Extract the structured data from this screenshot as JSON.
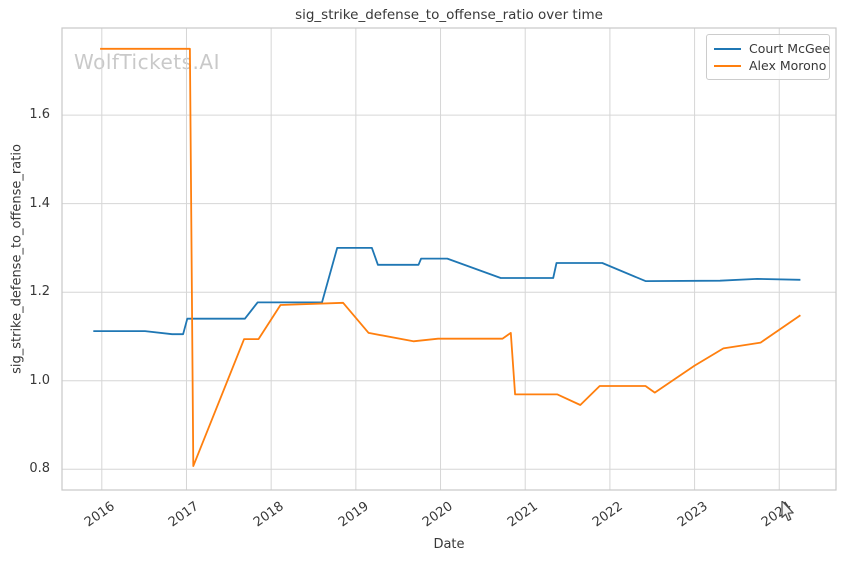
{
  "title": "sig_strike_defense_to_offense_ratio over time",
  "watermark": "WolfTickets.AI",
  "axes": {
    "xlabel": "Date",
    "ylabel": "sig_strike_defense_to_offense_ratio"
  },
  "legend": {
    "entries": [
      {
        "label": "Court McGee",
        "color": "#1f77b4"
      },
      {
        "label": "Alex Morono",
        "color": "#ff7f0e"
      }
    ]
  },
  "colors": {
    "grid": "#d6d6d6",
    "border": "#c8c8c8",
    "text": "#383838",
    "watermark": "#c9c9c9",
    "background": "#ffffff",
    "blue": "#1f77b4",
    "orange": "#ff7f0e"
  },
  "chart_data": {
    "type": "line",
    "title": "sig_strike_defense_to_offense_ratio over time",
    "xlabel": "Date",
    "ylabel": "sig_strike_defense_to_offense_ratio",
    "grid": true,
    "legend_position": "upper right",
    "x_ticks": [
      2016,
      2017,
      2018,
      2019,
      2020,
      2021,
      2022,
      2023,
      2024
    ],
    "y_ticks": [
      0.8,
      1.0,
      1.2,
      1.4,
      1.6
    ],
    "xlim": [
      2015.53,
      2024.67
    ],
    "ylim": [
      0.753,
      1.797
    ],
    "series": [
      {
        "name": "Court McGee",
        "color": "#1f77b4",
        "x": [
          2015.9,
          2016.51,
          2016.83,
          2016.96,
          2017.01,
          2017.69,
          2017.84,
          2018.6,
          2018.78,
          2019.19,
          2019.26,
          2019.74,
          2019.77,
          2020.08,
          2020.71,
          2021.33,
          2021.37,
          2021.91,
          2022.42,
          2023.3,
          2023.74,
          2024.25
        ],
        "y": [
          1.112,
          1.112,
          1.105,
          1.105,
          1.14,
          1.14,
          1.177,
          1.177,
          1.3,
          1.3,
          1.262,
          1.262,
          1.276,
          1.276,
          1.232,
          1.232,
          1.266,
          1.266,
          1.225,
          1.226,
          1.23,
          1.228
        ]
      },
      {
        "name": "Alex Morono",
        "color": "#ff7f0e",
        "x": [
          2015.98,
          2017.04,
          2017.08,
          2017.68,
          2017.85,
          2018.11,
          2018.85,
          2019.15,
          2019.68,
          2019.97,
          2020.73,
          2020.83,
          2020.88,
          2021.38,
          2021.65,
          2021.88,
          2022.42,
          2022.53,
          2023.0,
          2023.34,
          2023.78,
          2024.25
        ],
        "y": [
          1.75,
          1.75,
          0.807,
          1.094,
          1.094,
          1.171,
          1.176,
          1.108,
          1.089,
          1.095,
          1.095,
          1.108,
          0.969,
          0.969,
          0.945,
          0.988,
          0.988,
          0.973,
          1.034,
          1.073,
          1.086,
          1.148
        ]
      }
    ]
  }
}
